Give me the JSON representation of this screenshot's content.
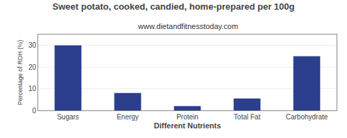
{
  "chart_data": {
    "type": "bar",
    "title": "Sweet potato, cooked, candied, home-prepared per 100g",
    "subtitle": "www.dietandfitnesstoday.com",
    "categories": [
      "Sugars",
      "Energy",
      "Protein",
      "Total Fat",
      "Carbohydrate"
    ],
    "values": [
      30.0,
      8.0,
      2.0,
      5.5,
      25.0
    ],
    "color": "#2b3f8c",
    "xlabel": "Different Nutrients",
    "ylabel": "Percentage of RDH (%)",
    "ylim": [
      0,
      35
    ],
    "yticks": [
      0,
      10,
      20,
      30
    ],
    "grid": true
  }
}
